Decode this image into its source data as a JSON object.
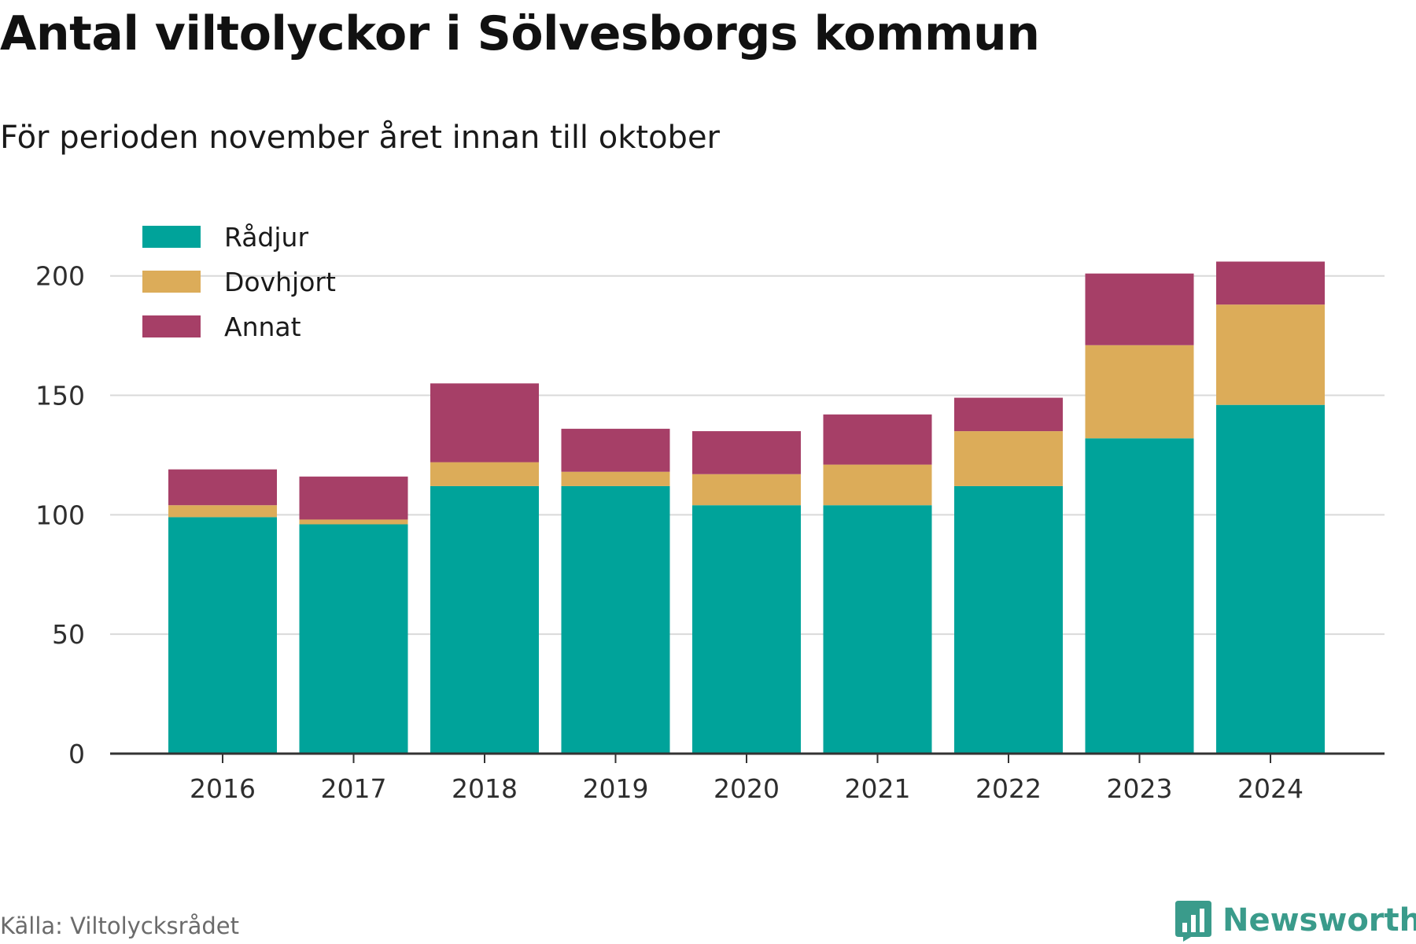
{
  "title": "Antal viltolyckor i Sölvesborgs kommun",
  "subtitle": "För perioden november året innan till oktober",
  "source": "Källa: Viltolycksrådet",
  "brand": "Newsworthy",
  "chart_data": {
    "type": "bar",
    "stacked": true,
    "categories": [
      "2016",
      "2017",
      "2018",
      "2019",
      "2020",
      "2021",
      "2022",
      "2023",
      "2024"
    ],
    "series": [
      {
        "name": "Rådjur",
        "color": "#00a39a",
        "values": [
          99,
          96,
          112,
          112,
          104,
          104,
          112,
          132,
          146
        ]
      },
      {
        "name": "Dovhjort",
        "color": "#dcac59",
        "values": [
          5,
          2,
          10,
          6,
          13,
          17,
          23,
          39,
          42
        ]
      },
      {
        "name": "Annat",
        "color": "#a63f67",
        "values": [
          15,
          18,
          33,
          18,
          18,
          21,
          14,
          30,
          18
        ]
      }
    ],
    "ylim": [
      0,
      220
    ],
    "yticks": [
      0,
      50,
      100,
      150,
      200
    ],
    "grid": true,
    "legend": "top-left"
  }
}
